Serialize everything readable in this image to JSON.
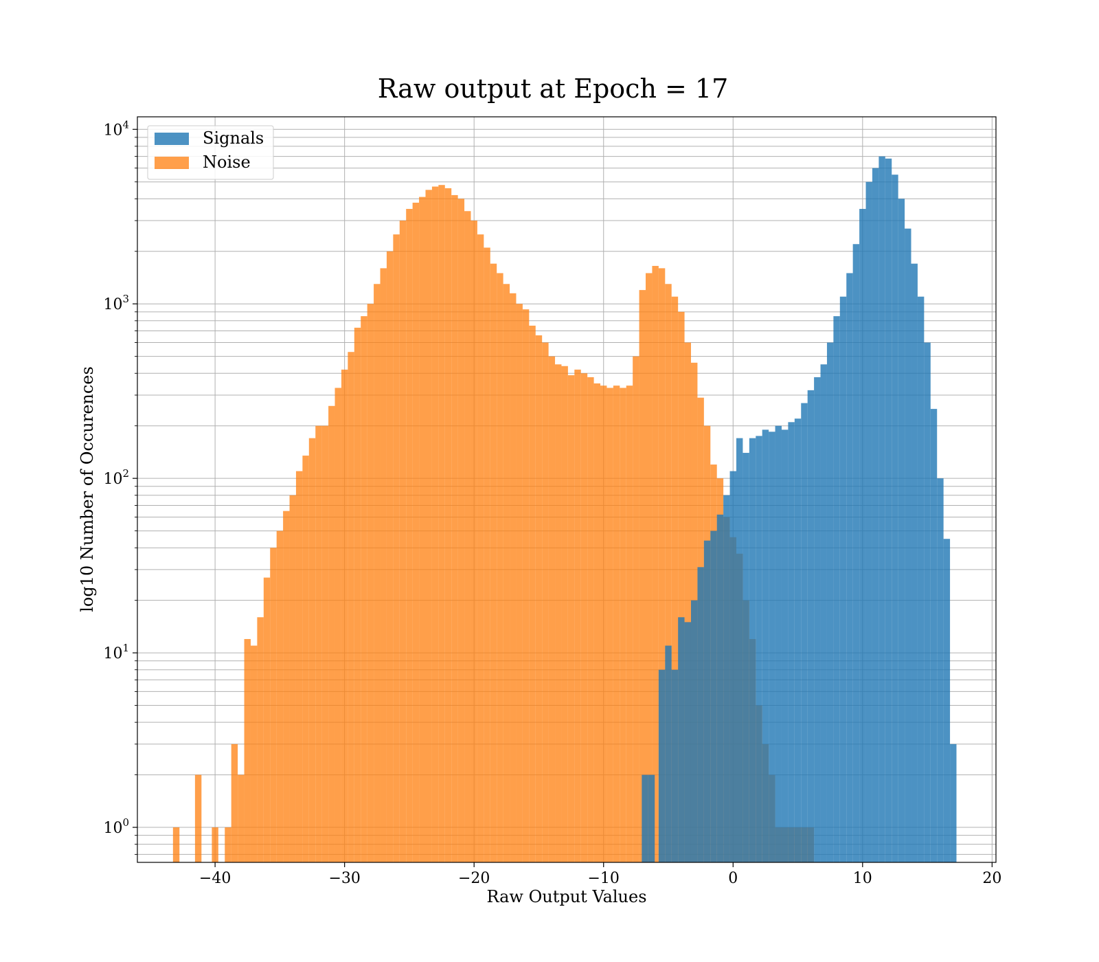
{
  "chart_data": {
    "type": "histogram",
    "title": "Raw output at Epoch = 17",
    "xlabel": "Raw Output Values",
    "ylabel": "log10 Number of Occurences",
    "xlim": [
      -46,
      20.3
    ],
    "ylim": [
      0.63,
      11800
    ],
    "yscale": "log",
    "grid": true,
    "legend_position": "upper left",
    "xticks": [
      -40,
      -30,
      -20,
      -10,
      0,
      10,
      20
    ],
    "xtick_labels": [
      "−40",
      "−30",
      "−20",
      "−10",
      "0",
      "10",
      "20"
    ],
    "yticks": [
      1,
      10,
      100,
      1000,
      10000
    ],
    "ytick_labels": [
      {
        "base": "10",
        "exp": "0"
      },
      {
        "base": "10",
        "exp": "1"
      },
      {
        "base": "10",
        "exp": "2"
      },
      {
        "base": "10",
        "exp": "3"
      },
      {
        "base": "10",
        "exp": "4"
      }
    ],
    "series": [
      {
        "name": "Noise",
        "color": "#ff7f0e",
        "alpha": 0.75,
        "points": [
          [
            -43,
            1
          ],
          [
            -41.3,
            2
          ],
          [
            -40,
            1
          ],
          [
            -39,
            1
          ],
          [
            -38.5,
            3
          ],
          [
            -38,
            2
          ],
          [
            -37.5,
            12
          ],
          [
            -37,
            11
          ],
          [
            -36.5,
            16
          ],
          [
            -36,
            27
          ],
          [
            -35.5,
            40
          ],
          [
            -35,
            50
          ],
          [
            -34.5,
            65
          ],
          [
            -34,
            80
          ],
          [
            -33.5,
            110
          ],
          [
            -33,
            135
          ],
          [
            -32.5,
            170
          ],
          [
            -32,
            200
          ],
          [
            -31.5,
            200
          ],
          [
            -31,
            260
          ],
          [
            -30.5,
            330
          ],
          [
            -30,
            420
          ],
          [
            -29.5,
            530
          ],
          [
            -29,
            730
          ],
          [
            -28.5,
            850
          ],
          [
            -28,
            1000
          ],
          [
            -27.5,
            1300
          ],
          [
            -27,
            1600
          ],
          [
            -26.5,
            2000
          ],
          [
            -26,
            2500
          ],
          [
            -25.5,
            3000
          ],
          [
            -25,
            3500
          ],
          [
            -24.5,
            3800
          ],
          [
            -24,
            4100
          ],
          [
            -23.5,
            4500
          ],
          [
            -23,
            4700
          ],
          [
            -22.5,
            4800
          ],
          [
            -22,
            4600
          ],
          [
            -21.5,
            4200
          ],
          [
            -21,
            4000
          ],
          [
            -20.5,
            3400
          ],
          [
            -20,
            3000
          ],
          [
            -19.5,
            2500
          ],
          [
            -19,
            2100
          ],
          [
            -18.5,
            1700
          ],
          [
            -18,
            1500
          ],
          [
            -17.5,
            1300
          ],
          [
            -17,
            1150
          ],
          [
            -16.5,
            1000
          ],
          [
            -16,
            930
          ],
          [
            -15.5,
            750
          ],
          [
            -15,
            660
          ],
          [
            -14.5,
            600
          ],
          [
            -14,
            500
          ],
          [
            -13.5,
            450
          ],
          [
            -13,
            440
          ],
          [
            -12.5,
            390
          ],
          [
            -12,
            420
          ],
          [
            -11.5,
            400
          ],
          [
            -11,
            380
          ],
          [
            -10.5,
            350
          ],
          [
            -10,
            340
          ],
          [
            -9.5,
            330
          ],
          [
            -9,
            340
          ],
          [
            -8.5,
            330
          ],
          [
            -8,
            340
          ],
          [
            -7.5,
            500
          ],
          [
            -7,
            1200
          ],
          [
            -6.5,
            1500
          ],
          [
            -6,
            1650
          ],
          [
            -5.5,
            1600
          ],
          [
            -5,
            1300
          ],
          [
            -4.5,
            1100
          ],
          [
            -4,
            900
          ],
          [
            -3.5,
            600
          ],
          [
            -3,
            460
          ],
          [
            -2.5,
            290
          ],
          [
            -2,
            200
          ],
          [
            -1.5,
            120
          ],
          [
            -1,
            100
          ],
          [
            -0.5,
            60
          ],
          [
            0,
            46
          ],
          [
            0.5,
            37
          ],
          [
            1,
            20
          ],
          [
            1.5,
            12
          ],
          [
            2,
            5
          ],
          [
            2.5,
            3
          ],
          [
            3,
            2
          ],
          [
            3.5,
            1
          ],
          [
            4,
            1
          ],
          [
            4.5,
            1
          ],
          [
            5,
            1
          ],
          [
            5.5,
            1
          ],
          [
            6,
            1
          ]
        ]
      },
      {
        "name": "Signals",
        "color": "#1f77b4",
        "alpha": 0.8,
        "points": [
          [
            -6.8,
            2
          ],
          [
            -6.3,
            2
          ],
          [
            -5.5,
            8
          ],
          [
            -5,
            11
          ],
          [
            -4.5,
            8
          ],
          [
            -4,
            16
          ],
          [
            -3.5,
            15
          ],
          [
            -3,
            20
          ],
          [
            -2.5,
            31
          ],
          [
            -2,
            44
          ],
          [
            -1.5,
            50
          ],
          [
            -1,
            62
          ],
          [
            -0.5,
            80
          ],
          [
            0,
            110
          ],
          [
            0.5,
            170
          ],
          [
            1,
            140
          ],
          [
            1.5,
            170
          ],
          [
            2,
            175
          ],
          [
            2.5,
            190
          ],
          [
            3,
            185
          ],
          [
            3.5,
            200
          ],
          [
            4,
            190
          ],
          [
            4.5,
            210
          ],
          [
            5,
            220
          ],
          [
            5.5,
            270
          ],
          [
            6,
            320
          ],
          [
            6.5,
            380
          ],
          [
            7,
            450
          ],
          [
            7.5,
            600
          ],
          [
            8,
            850
          ],
          [
            8.5,
            1100
          ],
          [
            9,
            1500
          ],
          [
            9.5,
            2200
          ],
          [
            10,
            3500
          ],
          [
            10.5,
            5000
          ],
          [
            11,
            6000
          ],
          [
            11.5,
            7000
          ],
          [
            12,
            6800
          ],
          [
            12.5,
            5500
          ],
          [
            13,
            4000
          ],
          [
            13.5,
            2700
          ],
          [
            14,
            1700
          ],
          [
            14.5,
            1100
          ],
          [
            15,
            600
          ],
          [
            15.5,
            250
          ],
          [
            16,
            100
          ],
          [
            16.5,
            45
          ],
          [
            17,
            3
          ]
        ]
      }
    ]
  }
}
